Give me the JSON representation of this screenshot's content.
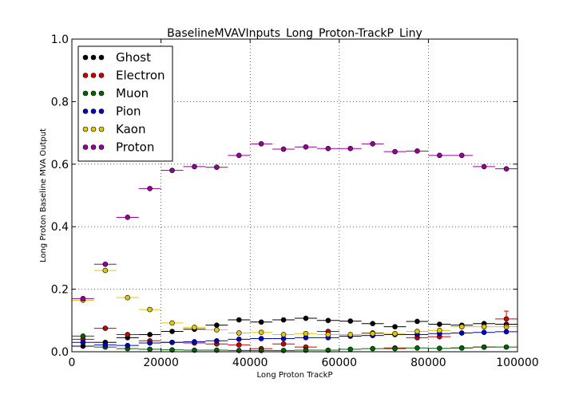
{
  "chart_data": {
    "type": "scatter",
    "title": "BaselineMVAVInputs_Long_Proton-TrackP_Liny",
    "xlabel": "Long Proton TrackP",
    "ylabel": "Long Proton Baseline MVA Output",
    "xlim": [
      0,
      100000
    ],
    "ylim": [
      0,
      1.0
    ],
    "x_ticks": [
      "0",
      "20000",
      "40000",
      "60000",
      "80000",
      "100000"
    ],
    "y_ticks": [
      "0.0",
      "0.2",
      "0.4",
      "0.6",
      "0.8",
      "1.0"
    ],
    "grid": true,
    "legend_position": "top-left",
    "bin_width": 5000,
    "x": [
      2500,
      7500,
      12500,
      17500,
      22500,
      27500,
      32500,
      37500,
      42500,
      47500,
      52500,
      57500,
      62500,
      67500,
      72500,
      77500,
      82500,
      87500,
      92500,
      97500
    ],
    "series": [
      {
        "name": "Ghost",
        "color": "#000000",
        "values": [
          0.018,
          0.03,
          0.045,
          0.055,
          0.065,
          0.072,
          0.085,
          0.102,
          0.095,
          0.102,
          0.107,
          0.1,
          0.098,
          0.09,
          0.08,
          0.097,
          0.088,
          0.085,
          0.09,
          0.088
        ]
      },
      {
        "name": "Electron",
        "color": "#cc0000",
        "values": [
          0.04,
          0.075,
          0.055,
          0.035,
          0.03,
          0.028,
          0.025,
          0.022,
          0.01,
          0.025,
          0.015,
          0.065,
          0.05,
          0.06,
          0.012,
          0.045,
          0.048,
          0.012,
          0.015,
          0.105
        ]
      },
      {
        "name": "Muon",
        "color": "#006600",
        "values": [
          0.05,
          0.015,
          0.01,
          0.008,
          0.006,
          0.005,
          0.005,
          0.004,
          0.004,
          0.004,
          0.005,
          0.005,
          0.008,
          0.01,
          0.01,
          0.012,
          0.011,
          0.012,
          0.015,
          0.015
        ]
      },
      {
        "name": "Pion",
        "color": "#0000cc",
        "values": [
          0.03,
          0.022,
          0.02,
          0.028,
          0.03,
          0.032,
          0.035,
          0.04,
          0.042,
          0.042,
          0.045,
          0.045,
          0.05,
          0.052,
          0.055,
          0.055,
          0.058,
          0.06,
          0.062,
          0.064
        ]
      },
      {
        "name": "Kaon",
        "color": "#e5c700",
        "values": [
          0.165,
          0.26,
          0.173,
          0.135,
          0.092,
          0.078,
          0.07,
          0.06,
          0.062,
          0.055,
          0.058,
          0.055,
          0.055,
          0.058,
          0.058,
          0.065,
          0.068,
          0.08,
          0.08,
          0.08
        ]
      },
      {
        "name": "Proton",
        "color": "#990099",
        "values": [
          0.17,
          0.28,
          0.43,
          0.522,
          0.58,
          0.592,
          0.59,
          0.628,
          0.665,
          0.648,
          0.655,
          0.65,
          0.65,
          0.665,
          0.64,
          0.642,
          0.628,
          0.628,
          0.592,
          0.585
        ]
      }
    ]
  }
}
